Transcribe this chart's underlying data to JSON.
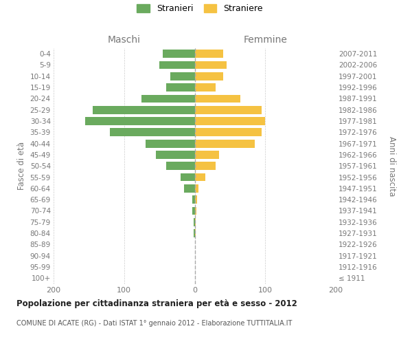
{
  "age_groups": [
    "100+",
    "95-99",
    "90-94",
    "85-89",
    "80-84",
    "75-79",
    "70-74",
    "65-69",
    "60-64",
    "55-59",
    "50-54",
    "45-49",
    "40-44",
    "35-39",
    "30-34",
    "25-29",
    "20-24",
    "15-19",
    "10-14",
    "5-9",
    "0-4"
  ],
  "birth_years": [
    "≤ 1911",
    "1912-1916",
    "1917-1921",
    "1922-1926",
    "1927-1931",
    "1932-1936",
    "1937-1941",
    "1942-1946",
    "1947-1951",
    "1952-1956",
    "1957-1961",
    "1962-1966",
    "1967-1971",
    "1972-1976",
    "1977-1981",
    "1982-1986",
    "1987-1991",
    "1992-1996",
    "1997-2001",
    "2002-2006",
    "2007-2011"
  ],
  "males": [
    0,
    0,
    0,
    0,
    1,
    1,
    3,
    3,
    15,
    20,
    40,
    55,
    70,
    120,
    155,
    145,
    75,
    40,
    35,
    50,
    45
  ],
  "females": [
    0,
    0,
    0,
    0,
    1,
    1,
    2,
    3,
    5,
    15,
    30,
    35,
    85,
    95,
    100,
    95,
    65,
    30,
    40,
    45,
    40
  ],
  "male_color": "#6aaa5e",
  "female_color": "#f5c242",
  "grid_color": "#cccccc",
  "dashed_line_color": "#aaaaaa",
  "title": "Popolazione per cittadinanza straniera per età e sesso - 2012",
  "subtitle": "COMUNE DI ACATE (RG) - Dati ISTAT 1° gennaio 2012 - Elaborazione TUTTITALIA.IT",
  "left_header": "Maschi",
  "right_header": "Femmine",
  "ylabel_left": "Fasce di età",
  "ylabel_right": "Anni di nascita",
  "xlim": 200,
  "legend_male": "Stranieri",
  "legend_female": "Straniere"
}
